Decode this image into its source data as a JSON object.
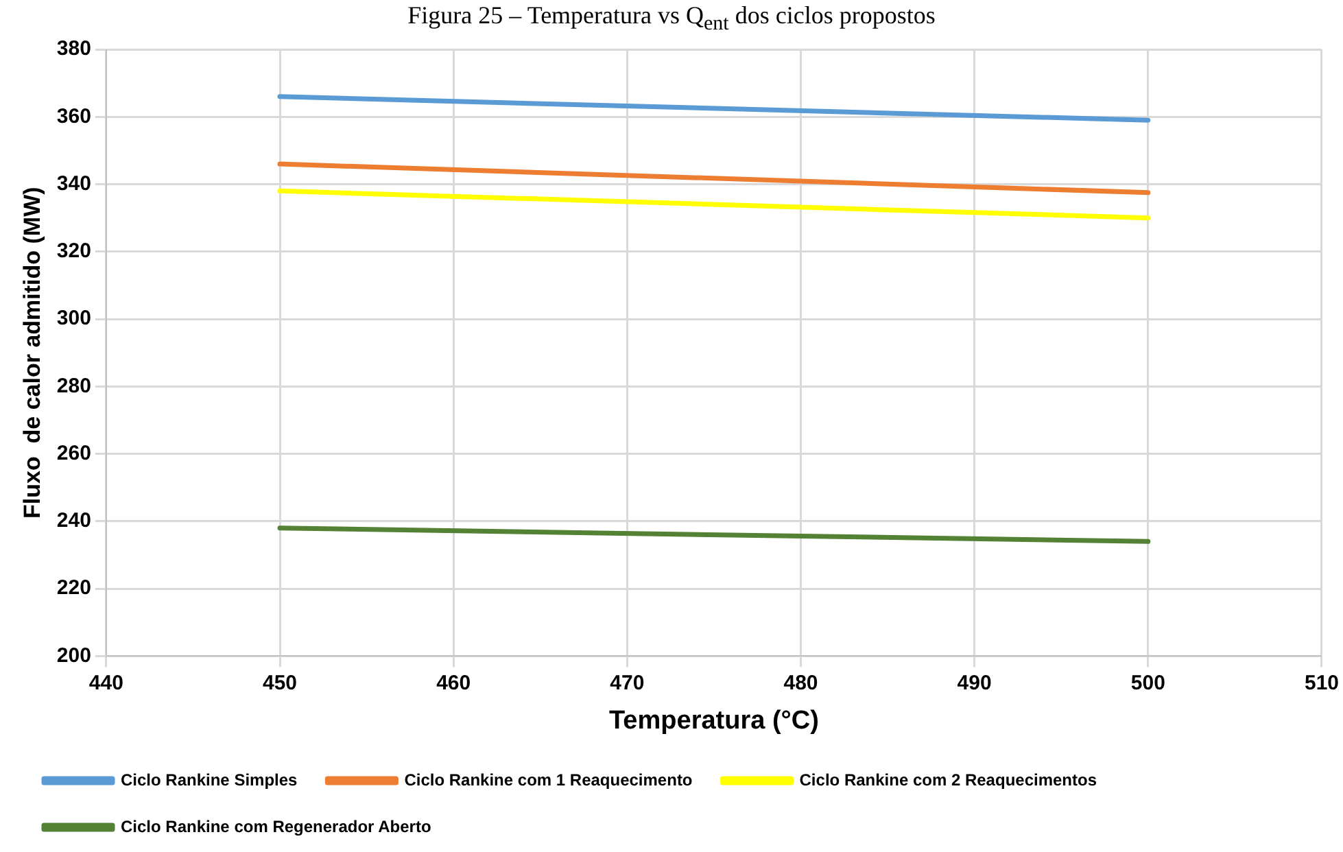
{
  "chart_data": {
    "type": "line",
    "title": "Figura 25 – Temperatura vs Q$_{ent}$ dos ciclos propostos",
    "xlabel": "Temperatura (°C)",
    "ylabel": "Fluxo  de calor admitido (MW)",
    "x": [
      450,
      500
    ],
    "series": [
      {
        "name": "Ciclo Rankine Simples",
        "color": "#5b9bd5",
        "values": [
          366,
          359
        ]
      },
      {
        "name": "Ciclo Rankine com 1 Reaquecimento",
        "color": "#ed7d31",
        "values": [
          346,
          337.5
        ]
      },
      {
        "name": "Ciclo Rankine com 2 Reaquecimentos",
        "color": "#ffff00",
        "values": [
          338,
          330
        ]
      },
      {
        "name": "Ciclo Rankine com Regenerador Aberto",
        "color": "#548235",
        "values": [
          238,
          234
        ]
      }
    ],
    "xlim": [
      440,
      510
    ],
    "xticks": [
      440,
      450,
      460,
      470,
      480,
      490,
      500,
      510
    ],
    "ylim": [
      200,
      380
    ],
    "yticks": [
      200,
      220,
      240,
      260,
      280,
      300,
      320,
      340,
      360,
      380
    ],
    "grid": true,
    "legend": "bottom",
    "marker": "none",
    "line_style": "solid"
  }
}
